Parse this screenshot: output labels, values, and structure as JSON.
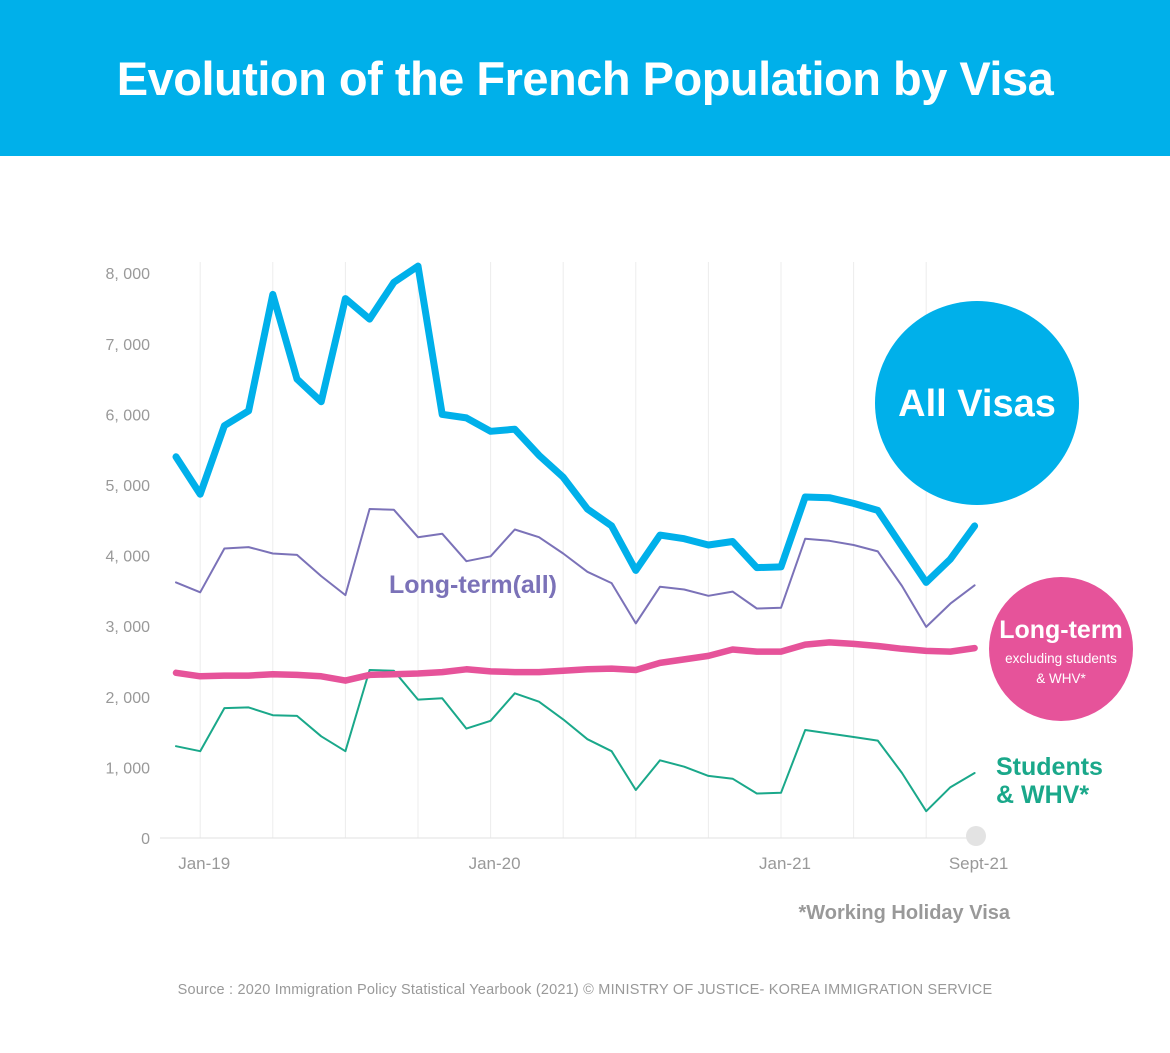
{
  "title": "Evolution of the French Population by Visa",
  "footnote": "*Working Holiday Visa",
  "source": "Source : 2020 Immigration Policy Statistical Yearbook (2021) © MINISTRY OF JUSTICE- KOREA IMMIGRATION SERVICE",
  "colors": {
    "header": "#00b0ea",
    "all_visas": "#00b0ea",
    "long_term_all": "#7b72b8",
    "long_term_excl": "#e6539a",
    "students": "#1aa88a",
    "axis_text": "#999999"
  },
  "chart_data": {
    "type": "line",
    "x": [
      "Dec-18",
      "Jan-19",
      "Feb-19",
      "Mar-19",
      "Apr-19",
      "May-19",
      "Jun-19",
      "Jul-19",
      "Aug-19",
      "Sep-19",
      "Oct-19",
      "Nov-19",
      "Dec-19",
      "Jan-20",
      "Feb-20",
      "Mar-20",
      "Apr-20",
      "May-20",
      "Jun-20",
      "Jul-20",
      "Aug-20",
      "Sep-20",
      "Oct-20",
      "Nov-20",
      "Dec-20",
      "Jan-21",
      "Feb-21",
      "Mar-21",
      "Apr-21",
      "May-21",
      "Jun-21",
      "Jul-21",
      "Aug-21",
      "Sep-21"
    ],
    "x_tick_labels": [
      {
        "index": 1,
        "label": "Jan-19"
      },
      {
        "index": 13,
        "label": "Jan-20"
      },
      {
        "index": 25,
        "label": "Jan-21"
      },
      {
        "index": 33,
        "label": "Sept-21"
      }
    ],
    "ylim": [
      0,
      8000
    ],
    "y_ticks": [
      {
        "value": 0,
        "label": "0"
      },
      {
        "value": 1000,
        "label": "1, 000"
      },
      {
        "value": 2000,
        "label": "2, 000"
      },
      {
        "value": 3000,
        "label": "3, 000"
      },
      {
        "value": 4000,
        "label": "4, 000"
      },
      {
        "value": 5000,
        "label": "5, 000"
      },
      {
        "value": 6000,
        "label": "6, 000"
      },
      {
        "value": 7000,
        "label": "7, 000"
      },
      {
        "value": 8000,
        "label": "8, 000"
      }
    ],
    "grid": "vertical",
    "series": [
      {
        "key": "all_visas",
        "name": "All Visas",
        "values": [
          5400,
          4870,
          5840,
          6050,
          7700,
          6500,
          6180,
          7640,
          7350,
          7870,
          8100,
          6000,
          5950,
          5760,
          5790,
          5420,
          5110,
          4660,
          4420,
          3790,
          4290,
          4240,
          4150,
          4200,
          3830,
          3840,
          4830,
          4820,
          4740,
          4640,
          4130,
          3620,
          3950,
          4420
        ]
      },
      {
        "key": "long_term_all",
        "name": "Long-term(all)",
        "values": [
          3620,
          3480,
          4100,
          4120,
          4030,
          4010,
          3710,
          3440,
          4660,
          4650,
          4260,
          4310,
          3920,
          3990,
          4370,
          4260,
          4030,
          3770,
          3610,
          3040,
          3560,
          3520,
          3430,
          3490,
          3250,
          3260,
          4240,
          4210,
          4150,
          4060,
          3570,
          2990,
          3320,
          3580
        ]
      },
      {
        "key": "long_term_excl",
        "name_line1": "Long-term",
        "name_line2": "excluding students",
        "name_line3": "& WHV*",
        "values": [
          2340,
          2290,
          2300,
          2300,
          2320,
          2310,
          2290,
          2230,
          2310,
          2320,
          2330,
          2350,
          2390,
          2360,
          2350,
          2350,
          2370,
          2390,
          2400,
          2380,
          2480,
          2530,
          2580,
          2670,
          2640,
          2640,
          2740,
          2770,
          2750,
          2720,
          2680,
          2650,
          2640,
          2690
        ]
      },
      {
        "key": "students",
        "name_line1": "Students",
        "name_line2": "& WHV*",
        "values": [
          1300,
          1230,
          1840,
          1850,
          1740,
          1730,
          1440,
          1230,
          2380,
          2370,
          1960,
          1980,
          1550,
          1660,
          2050,
          1930,
          1680,
          1400,
          1230,
          680,
          1100,
          1010,
          880,
          840,
          630,
          640,
          1530,
          1480,
          1430,
          1380,
          920,
          380,
          720,
          920
        ]
      }
    ]
  }
}
